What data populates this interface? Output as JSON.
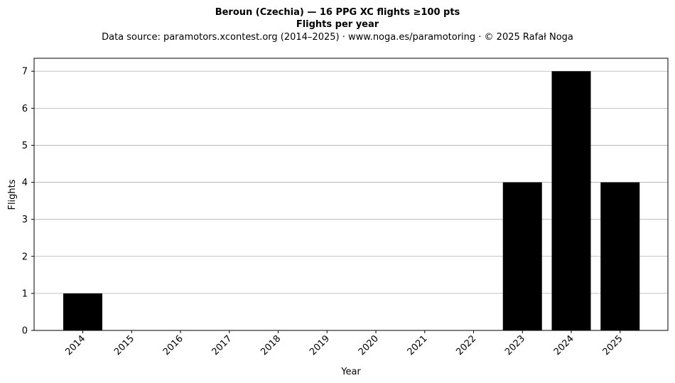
{
  "chart_data": {
    "type": "bar",
    "title": "Beroun (Czechia)  —  16 PPG XC flights ≥100 pts",
    "subtitle": "Flights per year",
    "source_line": "Data source: paramotors.xcontest.org (2014–2025)  ·  www.noga.es/paramotoring  ·  © 2025 Rafał Noga",
    "xlabel": "Year",
    "ylabel": "Flights",
    "categories": [
      "2014",
      "2015",
      "2016",
      "2017",
      "2018",
      "2019",
      "2020",
      "2021",
      "2022",
      "2023",
      "2024",
      "2025"
    ],
    "values": [
      1,
      0,
      0,
      0,
      0,
      0,
      0,
      0,
      0,
      4,
      7,
      4
    ],
    "ylim": [
      0,
      7.35
    ],
    "yticks": [
      0,
      1,
      2,
      3,
      4,
      5,
      6,
      7
    ],
    "grid": "y",
    "bar_color": "#000000",
    "grid_color": "#b0b0b0"
  }
}
